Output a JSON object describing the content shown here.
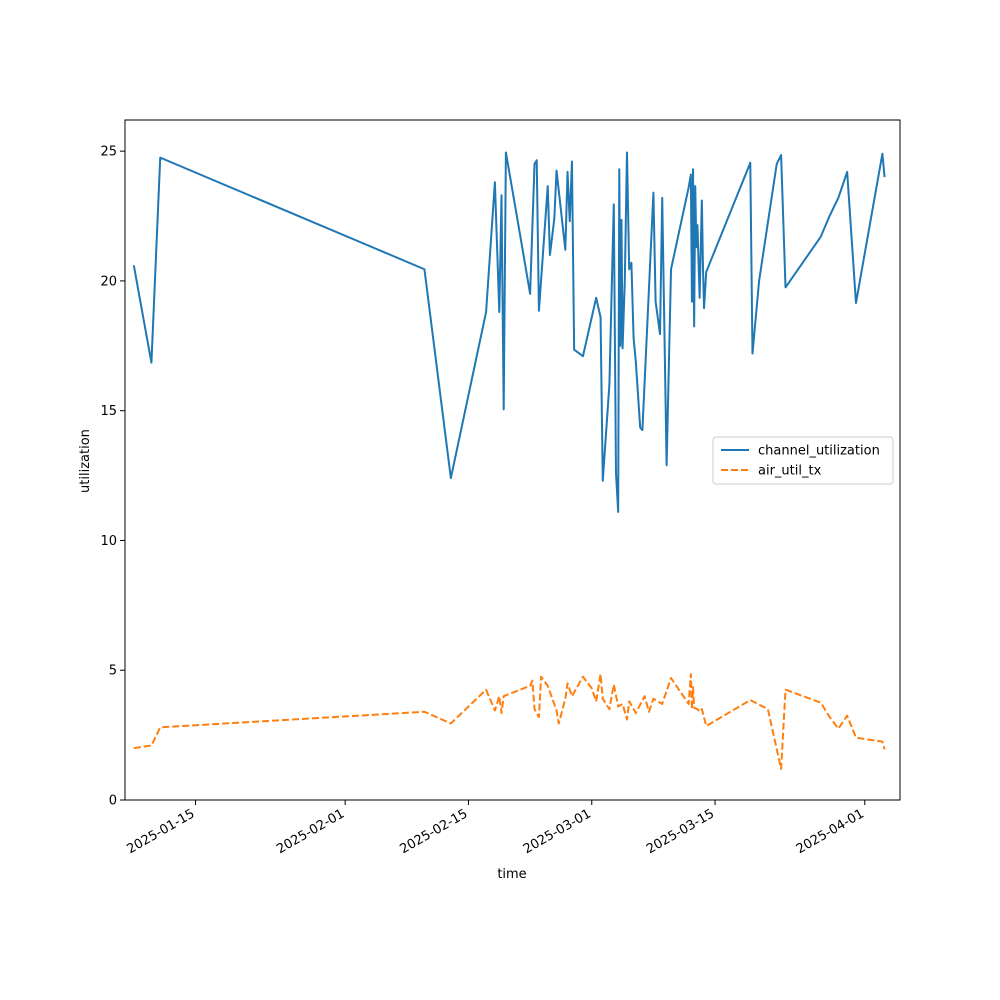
{
  "chart_data": {
    "type": "line",
    "title": "",
    "xlabel": "time",
    "ylabel": "utilization",
    "x_type": "date",
    "xlim": [
      "2025-01-07",
      "2025-04-05"
    ],
    "ylim": [
      0,
      26.2
    ],
    "x_ticks": [
      "2025-01-15",
      "2025-02-01",
      "2025-02-15",
      "2025-03-01",
      "2025-03-15",
      "2025-04-01"
    ],
    "x_tick_labels": [
      "2025-01-15",
      "2025-02-01",
      "2025-02-15",
      "2025-03-01",
      "2025-03-15",
      "2025-04-01"
    ],
    "y_ticks": [
      0,
      5,
      10,
      15,
      20,
      25
    ],
    "y_tick_labels": [
      "0",
      "5",
      "10",
      "15",
      "20",
      "25"
    ],
    "grid": false,
    "legend_position": "center-right",
    "series": [
      {
        "name": "channel_utilization",
        "color": "#1f77b4",
        "dash": "solid",
        "points": [
          [
            "2025-01-08",
            20.6
          ],
          [
            "2025-01-10",
            16.85
          ],
          [
            "2025-01-11",
            24.75
          ],
          [
            "2025-02-10",
            20.45
          ],
          [
            "2025-02-13",
            12.4
          ],
          [
            "2025-02-17",
            18.8
          ],
          [
            "2025-02-18",
            23.8
          ],
          [
            "2025-02-18T12:00",
            18.8
          ],
          [
            "2025-02-18T18:00",
            23.3
          ],
          [
            "2025-02-19",
            15.05
          ],
          [
            "2025-02-19T06:00",
            24.95
          ],
          [
            "2025-02-21",
            21.5
          ],
          [
            "2025-02-22",
            19.5
          ],
          [
            "2025-02-22T12:00",
            24.5
          ],
          [
            "2025-02-22T18:00",
            24.65
          ],
          [
            "2025-02-23",
            18.85
          ],
          [
            "2025-02-24",
            23.65
          ],
          [
            "2025-02-24T06:00",
            21.0
          ],
          [
            "2025-02-24T18:00",
            22.4
          ],
          [
            "2025-02-25",
            24.25
          ],
          [
            "2025-02-26",
            21.2
          ],
          [
            "2025-02-26T06:00",
            24.2
          ],
          [
            "2025-02-26T12:00",
            22.3
          ],
          [
            "2025-02-26T18:00",
            24.6
          ],
          [
            "2025-02-27",
            17.35
          ],
          [
            "2025-02-28",
            17.1
          ],
          [
            "2025-03-01T12:00",
            19.35
          ],
          [
            "2025-03-02",
            18.6
          ],
          [
            "2025-03-02T06:00",
            12.3
          ],
          [
            "2025-03-03",
            16.0
          ],
          [
            "2025-03-03T12:00",
            22.95
          ],
          [
            "2025-03-03T18:00",
            12.6
          ],
          [
            "2025-03-04",
            11.1
          ],
          [
            "2025-03-04T03:00",
            24.3
          ],
          [
            "2025-03-04T06:00",
            17.5
          ],
          [
            "2025-03-04T09:00",
            22.35
          ],
          [
            "2025-03-04T12:00",
            17.4
          ],
          [
            "2025-03-04T18:00",
            20.0
          ],
          [
            "2025-03-05",
            24.95
          ],
          [
            "2025-03-05T06:00",
            20.45
          ],
          [
            "2025-03-05T12:00",
            20.7
          ],
          [
            "2025-03-05T18:00",
            17.8
          ],
          [
            "2025-03-06",
            16.9
          ],
          [
            "2025-03-06T12:00",
            14.35
          ],
          [
            "2025-03-06T18:00",
            14.25
          ],
          [
            "2025-03-08",
            23.4
          ],
          [
            "2025-03-08T06:00",
            19.2
          ],
          [
            "2025-03-08T18:00",
            17.95
          ],
          [
            "2025-03-09",
            23.2
          ],
          [
            "2025-03-09T12:00",
            12.9
          ],
          [
            "2025-03-10",
            20.45
          ],
          [
            "2025-03-12",
            23.6
          ],
          [
            "2025-03-12T06:00",
            24.1
          ],
          [
            "2025-03-12T09:00",
            19.2
          ],
          [
            "2025-03-12T12:00",
            24.3
          ],
          [
            "2025-03-12T15:00",
            18.25
          ],
          [
            "2025-03-12T18:00",
            23.65
          ],
          [
            "2025-03-12T21:00",
            21.3
          ],
          [
            "2025-03-13",
            22.15
          ],
          [
            "2025-03-13T06:00",
            19.35
          ],
          [
            "2025-03-13T12:00",
            23.1
          ],
          [
            "2025-03-13T15:00",
            20.6
          ],
          [
            "2025-03-13T18:00",
            18.95
          ],
          [
            "2025-03-14",
            20.35
          ],
          [
            "2025-03-19",
            24.55
          ],
          [
            "2025-03-19T06:00",
            17.2
          ],
          [
            "2025-03-20",
            20.0
          ],
          [
            "2025-03-22",
            24.5
          ],
          [
            "2025-03-22T12:00",
            24.85
          ],
          [
            "2025-03-23",
            19.75
          ],
          [
            "2025-03-27",
            21.7
          ],
          [
            "2025-03-28",
            22.5
          ],
          [
            "2025-03-29",
            23.2
          ],
          [
            "2025-03-30",
            24.2
          ],
          [
            "2025-03-31",
            19.15
          ],
          [
            "2025-04-03",
            24.9
          ],
          [
            "2025-04-03T06:00",
            24.0
          ]
        ]
      },
      {
        "name": "air_util_tx",
        "color": "#ff7f0e",
        "dash": "dashed",
        "points": [
          [
            "2025-01-08",
            2.0
          ],
          [
            "2025-01-10",
            2.1
          ],
          [
            "2025-01-11",
            2.8
          ],
          [
            "2025-02-10",
            3.4
          ],
          [
            "2025-02-13",
            2.95
          ],
          [
            "2025-02-17",
            4.25
          ],
          [
            "2025-02-18",
            3.45
          ],
          [
            "2025-02-18T12:00",
            4.0
          ],
          [
            "2025-02-18T18:00",
            3.35
          ],
          [
            "2025-02-19",
            4.0
          ],
          [
            "2025-02-22",
            4.4
          ],
          [
            "2025-02-22T06:00",
            4.6
          ],
          [
            "2025-02-22T12:00",
            3.5
          ],
          [
            "2025-02-23",
            3.2
          ],
          [
            "2025-02-23T06:00",
            4.75
          ],
          [
            "2025-02-24",
            4.4
          ],
          [
            "2025-02-25",
            3.45
          ],
          [
            "2025-02-25T06:00",
            2.95
          ],
          [
            "2025-02-26",
            3.9
          ],
          [
            "2025-02-26T06:00",
            4.5
          ],
          [
            "2025-02-26T18:00",
            4.0
          ],
          [
            "2025-02-28",
            4.75
          ],
          [
            "2025-03-01",
            4.3
          ],
          [
            "2025-03-01T12:00",
            3.8
          ],
          [
            "2025-03-02",
            4.85
          ],
          [
            "2025-03-02T06:00",
            3.9
          ],
          [
            "2025-03-03",
            3.5
          ],
          [
            "2025-03-03T12:00",
            4.45
          ],
          [
            "2025-03-04",
            3.6
          ],
          [
            "2025-03-04T12:00",
            3.7
          ],
          [
            "2025-03-05",
            3.1
          ],
          [
            "2025-03-05T06:00",
            3.8
          ],
          [
            "2025-03-06",
            3.35
          ],
          [
            "2025-03-07",
            4.0
          ],
          [
            "2025-03-07T12:00",
            3.4
          ],
          [
            "2025-03-08",
            3.9
          ],
          [
            "2025-03-09",
            3.7
          ],
          [
            "2025-03-10",
            4.7
          ],
          [
            "2025-03-11",
            4.2
          ],
          [
            "2025-03-12",
            3.7
          ],
          [
            "2025-03-12T06:00",
            4.85
          ],
          [
            "2025-03-12T09:00",
            3.5
          ],
          [
            "2025-03-12T12:00",
            4.35
          ],
          [
            "2025-03-12T15:00",
            3.55
          ],
          [
            "2025-03-13",
            3.5
          ],
          [
            "2025-03-13T06:00",
            3.4
          ],
          [
            "2025-03-13T12:00",
            3.5
          ],
          [
            "2025-03-14",
            2.85
          ],
          [
            "2025-03-19",
            3.85
          ],
          [
            "2025-03-21",
            3.5
          ],
          [
            "2025-03-22T12:00",
            1.2
          ],
          [
            "2025-03-23",
            4.25
          ],
          [
            "2025-03-27",
            3.75
          ],
          [
            "2025-03-28",
            3.2
          ],
          [
            "2025-03-29",
            2.75
          ],
          [
            "2025-03-30",
            3.25
          ],
          [
            "2025-03-31",
            2.4
          ],
          [
            "2025-04-03",
            2.25
          ],
          [
            "2025-04-03T06:00",
            1.95
          ]
        ]
      }
    ]
  }
}
